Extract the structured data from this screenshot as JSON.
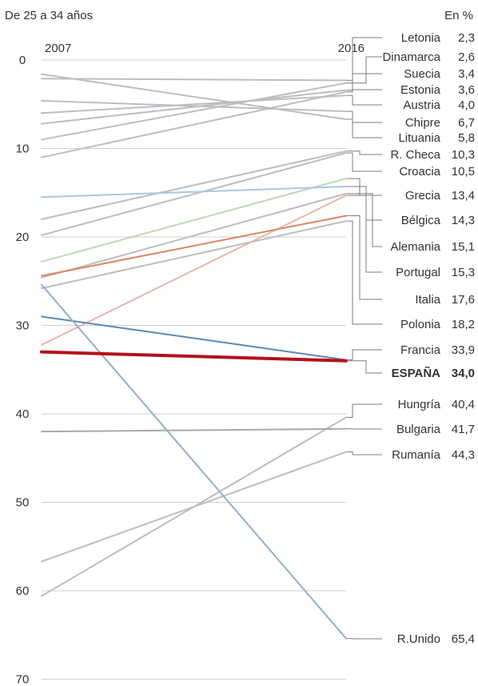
{
  "chart_data": {
    "type": "line",
    "title": "De 25 a 34 años",
    "unit_label": "En %",
    "x_labels": [
      "2007",
      "2016"
    ],
    "y_ticks": [
      "0",
      "10",
      "20",
      "30",
      "40",
      "50",
      "60",
      "70"
    ],
    "ylim": [
      0,
      70
    ],
    "y_inverted": true,
    "grid": true,
    "series": [
      {
        "name": "Letonia",
        "value_label": "2,3",
        "start": 2.1,
        "end": 2.3,
        "color": "#bdbdc2"
      },
      {
        "name": "Dinamarca",
        "value_label": "2,6",
        "start": 9.0,
        "end": 2.6,
        "color": "#bdbdc2"
      },
      {
        "name": "Suecia",
        "value_label": "3,4",
        "start": 7.2,
        "end": 3.4,
        "color": "#bdbdc2"
      },
      {
        "name": "Estonia",
        "value_label": "3,6",
        "start": 11.0,
        "end": 3.6,
        "color": "#bdbdc2"
      },
      {
        "name": "Austria",
        "value_label": "4,0",
        "start": 6.0,
        "end": 4.0,
        "color": "#bdbdc2"
      },
      {
        "name": "Chipre",
        "value_label": "6,7",
        "start": 1.6,
        "end": 6.7,
        "color": "#bdbdc2"
      },
      {
        "name": "Lituania",
        "value_label": "5,8",
        "start": 4.6,
        "end": 5.8,
        "color": "#bdbdc2"
      },
      {
        "name": "R. Checa",
        "value_label": "10,3",
        "start": 18.0,
        "end": 10.3,
        "color": "#bdbdc2"
      },
      {
        "name": "Croacia",
        "value_label": "10,5",
        "start": 19.8,
        "end": 10.5,
        "color": "#bdbdc2"
      },
      {
        "name": "Grecia",
        "value_label": "13,4",
        "start": 22.8,
        "end": 13.4,
        "color": "#bfd6b8"
      },
      {
        "name": "Bélgica",
        "value_label": "14,3",
        "start": 15.5,
        "end": 14.3,
        "color": "#a9c7e3"
      },
      {
        "name": "Alemania",
        "value_label": "15,1",
        "start": 24.6,
        "end": 15.1,
        "color": "#bdbdc2"
      },
      {
        "name": "Portugal",
        "value_label": "15,3",
        "start": 32.2,
        "end": 15.3,
        "color": "#e3b7a7"
      },
      {
        "name": "Italia",
        "value_label": "17,6",
        "start": 24.4,
        "end": 17.6,
        "color": "#d98662"
      },
      {
        "name": "Polonia",
        "value_label": "18,2",
        "start": 25.8,
        "end": 18.2,
        "color": "#bdbdc2"
      },
      {
        "name": "Francia",
        "value_label": "33,9",
        "start": 29.0,
        "end": 33.9,
        "color": "#5b8ab3"
      },
      {
        "name": "ESPAÑA",
        "value_label": "34,0",
        "start": 33.0,
        "end": 34.0,
        "color": "#b3121b",
        "highlight": true
      },
      {
        "name": "Hungría",
        "value_label": "40,4",
        "start": 60.6,
        "end": 40.4,
        "color": "#bdbdc2"
      },
      {
        "name": "Bulgaria",
        "value_label": "41,7",
        "start": 42.0,
        "end": 41.7,
        "color": "#a9a9ae"
      },
      {
        "name": "Rumanía",
        "value_label": "44,3",
        "start": 56.7,
        "end": 44.3,
        "color": "#bdbdc2"
      },
      {
        "name": "R.Unido",
        "value_label": "65,4",
        "start": 25.4,
        "end": 65.4,
        "color": "#94aec9"
      }
    ]
  }
}
